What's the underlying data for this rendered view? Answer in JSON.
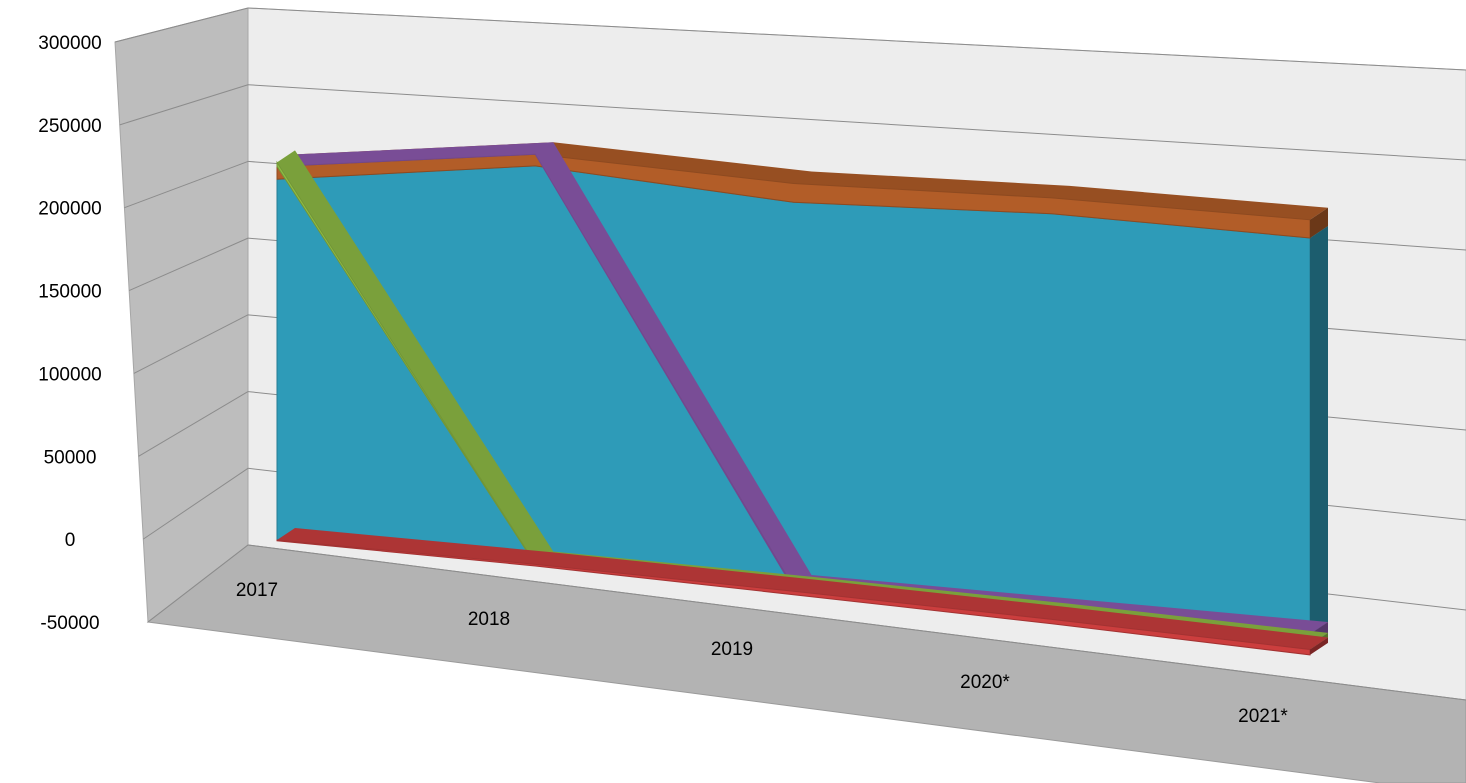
{
  "chart_data": {
    "type": "area",
    "style": "3d-stacked-area",
    "title": "",
    "xlabel": "",
    "ylabel": "",
    "categories": [
      "2017",
      "2018",
      "2019",
      "2020*",
      "2021*"
    ],
    "ylim": [
      -50000,
      300000
    ],
    "yticks": [
      300000,
      250000,
      200000,
      150000,
      100000,
      50000,
      0,
      -50000
    ],
    "grid": true,
    "legend": "none",
    "series": [
      {
        "color": "#2e9bb8",
        "values": [
          225000,
          240000,
          225000,
          225000,
          218000
        ]
      },
      {
        "color": "#b25d28",
        "values": [
          8000,
          7000,
          11000,
          9000,
          10000
        ]
      },
      {
        "color": "#8e5ab0",
        "values": [
          0,
          0,
          -1000,
          -3000,
          -6000
        ]
      },
      {
        "color": "#8fbc45",
        "values": [
          2500,
          -500,
          -1500,
          -2000,
          -2500
        ]
      },
      {
        "color": "#cc3e3e",
        "values": [
          -500,
          -1000,
          -2000,
          -2500,
          -3000
        ]
      }
    ]
  }
}
